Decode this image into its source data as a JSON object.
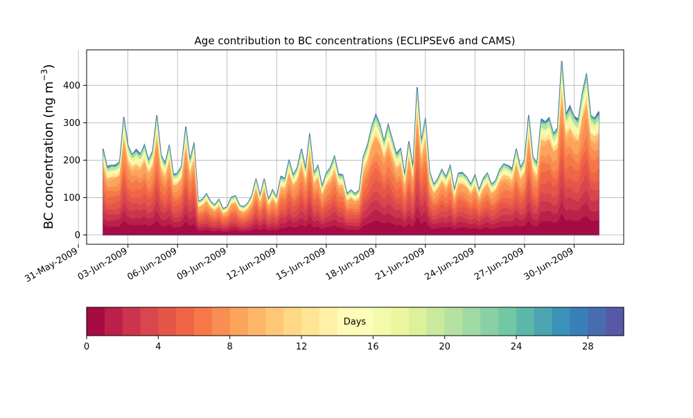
{
  "chart_data": {
    "type": "area",
    "title": "Age contribution to BC concentrations (ECLIPSEv6 and CAMS)",
    "ylabel_main": "BC concentration (ng m",
    "ylabel_sup": "−3",
    "ylabel_close": ")",
    "xlabel": "",
    "ylim": [
      -25,
      495
    ],
    "yticks": [
      0,
      100,
      200,
      300,
      400
    ],
    "xlim": [
      "2009-05-31T12:00",
      "2009-07-03T00:00"
    ],
    "xticks": [
      "31-May-2009",
      "03-Jun-2009",
      "06-Jun-2009",
      "09-Jun-2009",
      "12-Jun-2009",
      "15-Jun-2009",
      "18-Jun-2009",
      "21-Jun-2009",
      "24-Jun-2009",
      "27-Jun-2009",
      "30-Jun-2009"
    ],
    "xtick_dates": [
      "2009-05-31",
      "2009-06-03",
      "2009-06-06",
      "2009-06-09",
      "2009-06-12",
      "2009-06-15",
      "2009-06-18",
      "2009-06-21",
      "2009-06-24",
      "2009-06-27",
      "2009-06-30"
    ],
    "grid": true,
    "total_series": {
      "x": [
        "2009-06-01T12:00",
        "2009-06-01T18:00",
        "2009-06-02T00:00",
        "2009-06-02T06:00",
        "2009-06-02T12:00",
        "2009-06-02T18:00",
        "2009-06-03T00:00",
        "2009-06-03T06:00",
        "2009-06-03T12:00",
        "2009-06-03T18:00",
        "2009-06-04T00:00",
        "2009-06-04T06:00",
        "2009-06-04T12:00",
        "2009-06-04T18:00",
        "2009-06-05T00:00",
        "2009-06-05T06:00",
        "2009-06-05T12:00",
        "2009-06-05T18:00",
        "2009-06-06T00:00",
        "2009-06-06T06:00",
        "2009-06-06T12:00",
        "2009-06-06T18:00",
        "2009-06-07T00:00",
        "2009-06-07T06:00",
        "2009-06-07T12:00",
        "2009-06-07T18:00",
        "2009-06-08T00:00",
        "2009-06-08T06:00",
        "2009-06-08T12:00",
        "2009-06-08T18:00",
        "2009-06-09T00:00",
        "2009-06-09T06:00",
        "2009-06-09T12:00",
        "2009-06-09T18:00",
        "2009-06-10T00:00",
        "2009-06-10T06:00",
        "2009-06-10T12:00",
        "2009-06-10T18:00",
        "2009-06-11T00:00",
        "2009-06-11T06:00",
        "2009-06-11T12:00",
        "2009-06-11T18:00",
        "2009-06-12T00:00",
        "2009-06-12T06:00",
        "2009-06-12T12:00",
        "2009-06-12T18:00",
        "2009-06-13T00:00",
        "2009-06-13T06:00",
        "2009-06-13T12:00",
        "2009-06-13T18:00",
        "2009-06-14T00:00",
        "2009-06-14T06:00",
        "2009-06-14T12:00",
        "2009-06-14T18:00",
        "2009-06-15T00:00",
        "2009-06-15T06:00",
        "2009-06-15T12:00",
        "2009-06-15T18:00",
        "2009-06-16T00:00",
        "2009-06-16T06:00",
        "2009-06-16T12:00",
        "2009-06-16T18:00",
        "2009-06-17T00:00",
        "2009-06-17T06:00",
        "2009-06-17T12:00",
        "2009-06-17T18:00",
        "2009-06-18T00:00",
        "2009-06-18T06:00",
        "2009-06-18T12:00",
        "2009-06-18T18:00",
        "2009-06-19T00:00",
        "2009-06-19T06:00",
        "2009-06-19T12:00",
        "2009-06-19T18:00",
        "2009-06-20T00:00",
        "2009-06-20T06:00",
        "2009-06-20T12:00",
        "2009-06-20T18:00",
        "2009-06-21T00:00",
        "2009-06-21T06:00",
        "2009-06-21T12:00",
        "2009-06-21T18:00",
        "2009-06-22T00:00",
        "2009-06-22T06:00",
        "2009-06-22T12:00",
        "2009-06-22T18:00",
        "2009-06-23T00:00",
        "2009-06-23T06:00",
        "2009-06-23T12:00",
        "2009-06-23T18:00",
        "2009-06-24T00:00",
        "2009-06-24T06:00",
        "2009-06-24T12:00",
        "2009-06-24T18:00",
        "2009-06-25T00:00",
        "2009-06-25T06:00",
        "2009-06-25T12:00",
        "2009-06-25T18:00",
        "2009-06-26T00:00",
        "2009-06-26T06:00",
        "2009-06-26T12:00",
        "2009-06-26T18:00",
        "2009-06-27T00:00",
        "2009-06-27T06:00",
        "2009-06-27T12:00",
        "2009-06-27T18:00",
        "2009-06-28T00:00",
        "2009-06-28T06:00",
        "2009-06-28T12:00",
        "2009-06-28T18:00",
        "2009-06-29T00:00",
        "2009-06-29T06:00",
        "2009-06-29T12:00",
        "2009-06-29T18:00",
        "2009-06-30T00:00",
        "2009-06-30T06:00",
        "2009-06-30T12:00",
        "2009-06-30T18:00",
        "2009-07-01T00:00",
        "2009-07-01T06:00",
        "2009-07-01T12:00"
      ],
      "values": [
        230,
        180,
        185,
        185,
        195,
        315,
        240,
        215,
        225,
        215,
        240,
        200,
        225,
        320,
        215,
        190,
        240,
        160,
        165,
        185,
        290,
        200,
        245,
        90,
        95,
        110,
        90,
        80,
        95,
        70,
        75,
        100,
        105,
        80,
        75,
        85,
        105,
        150,
        105,
        150,
        95,
        120,
        100,
        155,
        150,
        200,
        160,
        180,
        230,
        175,
        270,
        165,
        185,
        130,
        165,
        180,
        210,
        160,
        160,
        110,
        120,
        110,
        120,
        210,
        240,
        290,
        320,
        295,
        250,
        295,
        255,
        215,
        230,
        160,
        250,
        180,
        395,
        250,
        310,
        170,
        135,
        150,
        175,
        155,
        185,
        120,
        165,
        165,
        155,
        135,
        160,
        120,
        150,
        165,
        135,
        145,
        175,
        190,
        185,
        175,
        230,
        180,
        200,
        320,
        210,
        190,
        305,
        300,
        310,
        270,
        285,
        465,
        320,
        340,
        315,
        305,
        380,
        430,
        320,
        310,
        325
      ]
    },
    "colorbar": {
      "label": "Days",
      "range": [
        0,
        30
      ],
      "ticks": [
        0,
        4,
        8,
        12,
        16,
        20,
        24,
        28
      ],
      "colormap": "Spectral",
      "segments": 30
    }
  }
}
